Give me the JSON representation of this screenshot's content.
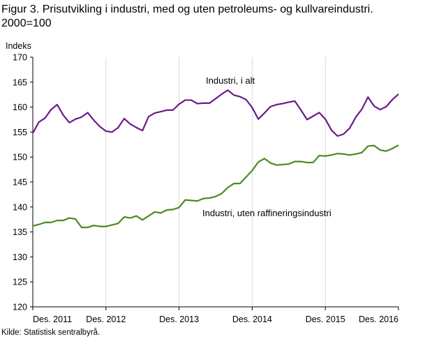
{
  "title": "Figur 3. Prisutvikling i industri, med og uten petroleums- og kullvareindustri. 2000=100",
  "source": "Kilde: Statistisk sentralbyrå.",
  "chart_data": {
    "type": "line",
    "ylabel": "Indeks",
    "ylim": [
      120,
      170
    ],
    "yticks": [
      120,
      125,
      130,
      135,
      140,
      145,
      150,
      155,
      160,
      165,
      170
    ],
    "x_start": "Des. 2011",
    "x_end": "Des. 2016",
    "x_interval": "monthly",
    "xticks": [
      "Des. 2011",
      "Des. 2012",
      "Des. 2013",
      "Des. 2014",
      "Des. 2015",
      "Des. 2016"
    ],
    "grid": "vertical",
    "colors": {
      "series1": "#6a1b8a",
      "series2": "#4a8b1c",
      "grid": "#d9d9d9",
      "axis": "#000000"
    },
    "series": [
      {
        "name": "Industri, i alt",
        "values": [
          154.8,
          157.0,
          157.8,
          159.5,
          160.5,
          158.4,
          156.9,
          157.6,
          158.0,
          158.9,
          157.4,
          156.1,
          155.2,
          155.0,
          155.9,
          157.7,
          156.6,
          155.9,
          155.3,
          158.1,
          158.8,
          159.1,
          159.4,
          159.4,
          160.6,
          161.4,
          161.4,
          160.7,
          160.8,
          160.8,
          161.7,
          162.6,
          163.4,
          162.4,
          162.1,
          161.5,
          159.9,
          157.6,
          158.8,
          160.1,
          160.5,
          160.7,
          161.0,
          161.2,
          159.4,
          157.5,
          158.2,
          158.9,
          157.6,
          155.4,
          154.2,
          154.6,
          155.8,
          158.0,
          159.6,
          162.0,
          160.2,
          159.5,
          160.1,
          161.5,
          162.6
        ]
      },
      {
        "name": "Industri, uten raffineringsindustri",
        "values": [
          136.2,
          136.5,
          136.9,
          136.9,
          137.3,
          137.3,
          137.8,
          137.6,
          135.9,
          135.9,
          136.3,
          136.1,
          136.1,
          136.4,
          136.7,
          138.0,
          137.8,
          138.2,
          137.4,
          138.2,
          139.0,
          138.8,
          139.4,
          139.5,
          139.9,
          141.4,
          141.3,
          141.2,
          141.7,
          141.8,
          142.1,
          142.7,
          143.9,
          144.7,
          144.7,
          146.0,
          147.3,
          149.0,
          149.7,
          148.8,
          148.4,
          148.5,
          148.6,
          149.1,
          149.1,
          148.9,
          148.9,
          150.3,
          150.2,
          150.4,
          150.7,
          150.6,
          150.4,
          150.6,
          150.9,
          152.2,
          152.3,
          151.4,
          151.2,
          151.7,
          152.4
        ]
      }
    ]
  }
}
